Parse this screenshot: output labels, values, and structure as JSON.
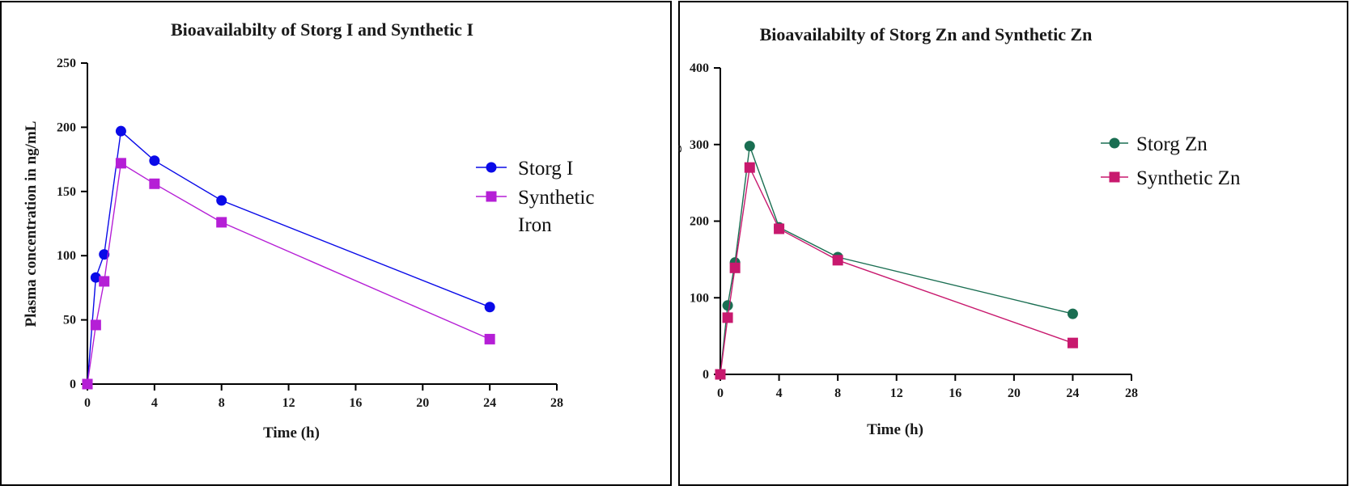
{
  "chart_data": [
    {
      "type": "line",
      "title": "Bioavailabilty of Storg I and Synthetic I",
      "xlabel": "Time (h)",
      "ylabel": "Plasma concentration in ng/mL",
      "xlim": [
        0,
        28
      ],
      "ylim": [
        0,
        250
      ],
      "xticks": [
        0,
        4,
        8,
        12,
        16,
        20,
        24,
        28
      ],
      "yticks": [
        0,
        50,
        100,
        150,
        200,
        250
      ],
      "legend_position": "right",
      "series": [
        {
          "name": "Storg I",
          "legend_lines": [
            "Storg I"
          ],
          "marker": "circle",
          "color": "#0a0ae8",
          "x": [
            0,
            0.5,
            1,
            2,
            4,
            8,
            24
          ],
          "y": [
            0,
            83,
            101,
            197,
            174,
            143,
            60
          ]
        },
        {
          "name": "Synthetic Iron",
          "legend_lines": [
            "Synthetic",
            "Iron"
          ],
          "marker": "square",
          "color": "#b51fd6",
          "x": [
            0,
            0.5,
            1,
            2,
            4,
            8,
            24
          ],
          "y": [
            0,
            46,
            80,
            172,
            156,
            126,
            35
          ]
        }
      ]
    },
    {
      "type": "line",
      "title": "Bioavailabilty of Storg Zn and Synthetic Zn",
      "xlabel": "Time (h)",
      "ylabel": "Plasma concentration in ng/mL",
      "xlim": [
        0,
        28
      ],
      "ylim": [
        0,
        400
      ],
      "xticks": [
        0,
        4,
        8,
        12,
        16,
        20,
        24,
        28
      ],
      "yticks": [
        0,
        100,
        200,
        300,
        400
      ],
      "legend_position": "top-right",
      "series": [
        {
          "name": "Storg Zn",
          "legend_lines": [
            "Storg Zn"
          ],
          "marker": "circle",
          "color": "#1a6e52",
          "x": [
            0,
            0.5,
            1,
            2,
            4,
            8,
            24
          ],
          "y": [
            0,
            90,
            146,
            298,
            192,
            153,
            79
          ]
        },
        {
          "name": "Synthetic Zn",
          "legend_lines": [
            "Synthetic Zn"
          ],
          "marker": "square",
          "color": "#c8196e",
          "x": [
            0,
            0.5,
            1,
            2,
            4,
            8,
            24
          ],
          "y": [
            0,
            74,
            139,
            270,
            190,
            149,
            41
          ]
        }
      ]
    }
  ]
}
